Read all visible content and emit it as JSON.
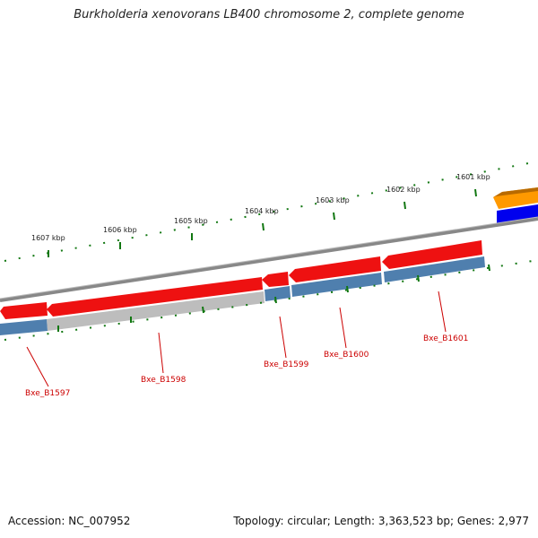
{
  "title": "Burkholderia xenovorans LB400 chromosome 2, complete genome",
  "footer": {
    "accession": "Accession: NC_007952",
    "summary": "Topology: circular; Length: 3,363,523 bp; Genes: 2,977"
  },
  "map": {
    "ruler_labels": [
      "1601 kbp",
      "1602 kbp",
      "1603 kbp",
      "1604 kbp",
      "1605 kbp",
      "1606 kbp",
      "1607 kbp"
    ],
    "gene_labels": [
      "Bxe_B1597",
      "Bxe_B1598",
      "Bxe_B1599",
      "Bxe_B1600",
      "Bxe_B1601"
    ],
    "colors": {
      "gene_red": "#ee1111",
      "cds_blue": "#4f7fae",
      "gray_feature": "#bdbdbd",
      "backbone": "#888888",
      "orange": "#ff9900",
      "blue": "#0000ee",
      "tick_green": "#117711",
      "label_red": "#cc0000"
    }
  }
}
